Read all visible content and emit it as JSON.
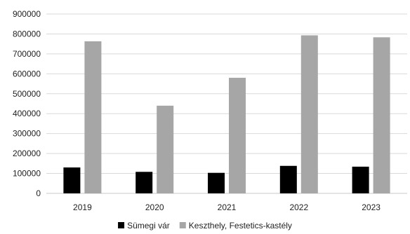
{
  "chart_data": {
    "type": "bar",
    "title": "",
    "xlabel": "",
    "ylabel": "",
    "categories": [
      "2019",
      "2020",
      "2021",
      "2022",
      "2023"
    ],
    "series": [
      {
        "name": "Sümegi vár",
        "color": "#000000",
        "values": [
          130000,
          108000,
          103000,
          138000,
          134000
        ]
      },
      {
        "name": "Keszthely, Festetics-kastély",
        "color": "#a6a6a6",
        "values": [
          763000,
          440000,
          580000,
          793000,
          783000
        ]
      }
    ],
    "ylim": [
      0,
      900000
    ],
    "yticks": [
      "0",
      "100000",
      "200000",
      "300000",
      "400000",
      "500000",
      "600000",
      "700000",
      "800000",
      "900000"
    ],
    "grid": true,
    "legend": "bottom-center"
  }
}
